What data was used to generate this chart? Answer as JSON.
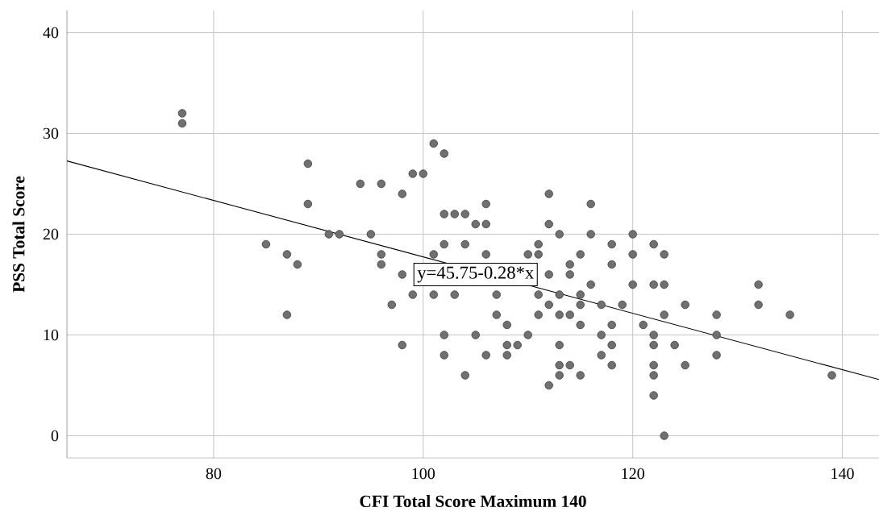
{
  "chart_data": {
    "type": "scatter",
    "xlabel": "CFI Total Score Maximum 140",
    "ylabel": "PSS Total Score",
    "xlim": [
      66,
      143.5
    ],
    "ylim": [
      -2.2,
      42.2
    ],
    "xticks": [
      80,
      100,
      120,
      140
    ],
    "yticks": [
      0,
      10,
      20,
      30,
      40
    ],
    "grid": true,
    "series": [
      {
        "marker": "circle",
        "color": "#707070",
        "x": [
          77,
          77,
          85,
          87,
          87,
          88,
          89,
          89,
          91,
          92,
          94,
          95,
          96,
          96,
          96,
          97,
          98,
          98,
          98,
          99,
          99,
          100,
          101,
          101,
          101,
          102,
          102,
          102,
          102,
          102,
          103,
          103,
          104,
          104,
          104,
          105,
          105,
          106,
          106,
          106,
          106,
          107,
          107,
          108,
          108,
          108,
          109,
          110,
          110,
          111,
          111,
          111,
          111,
          112,
          112,
          112,
          112,
          112,
          113,
          113,
          113,
          113,
          113,
          113,
          114,
          114,
          114,
          114,
          115,
          115,
          115,
          115,
          115,
          116,
          116,
          116,
          117,
          117,
          117,
          118,
          118,
          118,
          118,
          118,
          119,
          120,
          120,
          120,
          121,
          122,
          122,
          122,
          122,
          122,
          122,
          122,
          123,
          123,
          123,
          123,
          124,
          125,
          125,
          128,
          128,
          128,
          132,
          132,
          135,
          139
        ],
        "values": [
          32,
          31,
          19,
          18,
          12,
          17,
          27,
          23,
          20,
          20,
          25,
          20,
          25,
          18,
          17,
          13,
          24,
          16,
          9,
          26,
          14,
          26,
          29,
          14,
          18,
          28,
          22,
          19,
          10,
          8,
          22,
          14,
          22,
          19,
          6,
          21,
          10,
          23,
          21,
          18,
          8,
          14,
          12,
          11,
          9,
          8,
          9,
          18,
          10,
          19,
          18,
          14,
          12,
          24,
          21,
          16,
          13,
          5,
          20,
          14,
          12,
          9,
          7,
          6,
          17,
          16,
          12,
          7,
          18,
          14,
          13,
          11,
          6,
          23,
          20,
          15,
          13,
          10,
          8,
          19,
          17,
          11,
          9,
          7,
          13,
          20,
          18,
          15,
          11,
          19,
          15,
          10,
          9,
          7,
          6,
          4,
          18,
          15,
          12,
          0,
          9,
          13,
          7,
          12,
          10,
          8,
          15,
          13,
          12,
          6
        ]
      },
      {
        "type": "line",
        "marker": "none",
        "color": "#000000",
        "x": [
          66,
          143.5
        ],
        "values": [
          27.27,
          5.57
        ]
      }
    ],
    "annotations": [
      {
        "text": "y=45.75-0.28*x",
        "x": 105,
        "y": 16
      }
    ]
  }
}
